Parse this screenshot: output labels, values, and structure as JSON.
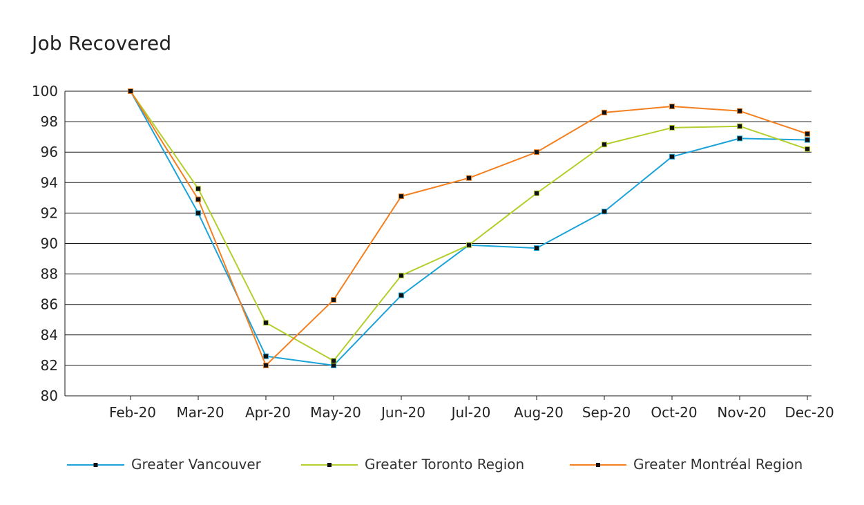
{
  "chart_data": {
    "type": "line",
    "title": "Job Recovered",
    "xlabel": "",
    "ylabel": "",
    "categories": [
      "Feb-20",
      "Mar-20",
      "Apr-20",
      "May-20",
      "Jun-20",
      "Jul-20",
      "Aug-20",
      "Sep-20",
      "Oct-20",
      "Nov-20",
      "Dec-20"
    ],
    "ylim": [
      80,
      100
    ],
    "yticks": [
      80,
      82,
      84,
      86,
      88,
      90,
      92,
      94,
      96,
      98,
      100
    ],
    "grid": true,
    "legend_position": "bottom",
    "series": [
      {
        "name": "Greater Vancouver",
        "color": "#1ba3d9",
        "values": [
          100,
          92.0,
          82.6,
          82.0,
          86.6,
          89.9,
          89.7,
          92.1,
          95.7,
          96.9,
          96.8
        ]
      },
      {
        "name": "Greater Toronto Region",
        "color": "#b2cf2c",
        "values": [
          100,
          93.6,
          84.8,
          82.3,
          87.9,
          89.9,
          93.3,
          96.5,
          97.6,
          97.7,
          96.2
        ]
      },
      {
        "name": "Greater Montréal Region",
        "color": "#f47f1f",
        "values": [
          100,
          92.9,
          82.0,
          86.3,
          93.1,
          94.3,
          96.0,
          98.6,
          99.0,
          98.7,
          97.2
        ]
      }
    ]
  }
}
